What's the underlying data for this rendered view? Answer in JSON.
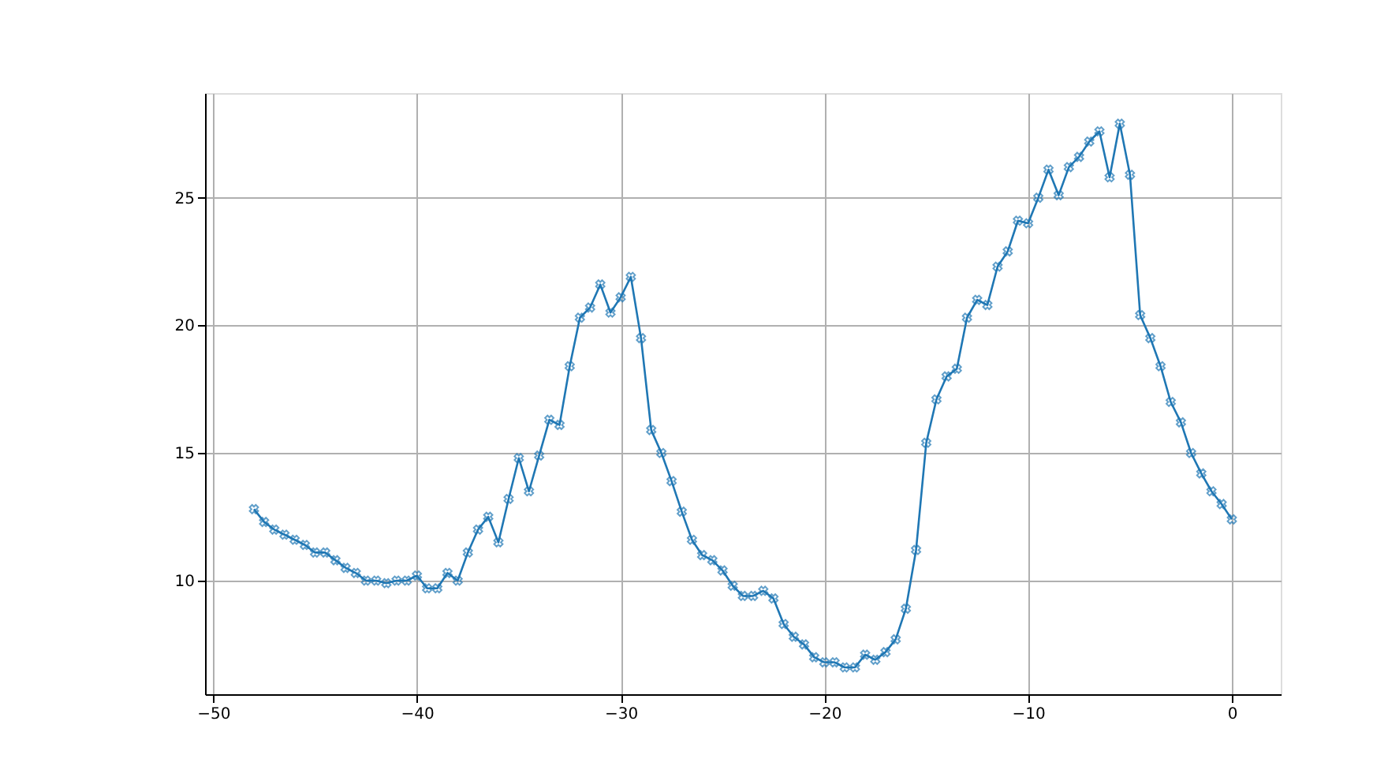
{
  "chart_data": {
    "type": "line",
    "marker": "cross",
    "grid": true,
    "x": [
      -48,
      -47.5,
      -47,
      -46.5,
      -46,
      -45.5,
      -45,
      -44.5,
      -44,
      -43.5,
      -43,
      -42.5,
      -42,
      -41.5,
      -41,
      -40.5,
      -40,
      -39.5,
      -39,
      -38.5,
      -38,
      -37.5,
      -37,
      -36.5,
      -36,
      -35.5,
      -35,
      -34.5,
      -34,
      -33.5,
      -33,
      -32.5,
      -32,
      -31.5,
      -31,
      -30.5,
      -30,
      -29.5,
      -29,
      -28.5,
      -28,
      -27.5,
      -27,
      -26.5,
      -26,
      -25.5,
      -25,
      -24.5,
      -24,
      -23.5,
      -23,
      -22.5,
      -22,
      -21.5,
      -21,
      -20.5,
      -20,
      -19.5,
      -19,
      -18.5,
      -18,
      -17.5,
      -17,
      -16.5,
      -16,
      -15.5,
      -15,
      -14.5,
      -14,
      -13.5,
      -13,
      -12.5,
      -12,
      -11.5,
      -11,
      -10.5,
      -10,
      -9.5,
      -9,
      -8.5,
      -8,
      -7.5,
      -7,
      -6.5,
      -6,
      -5.5,
      -5,
      -4.5,
      -4,
      -3.5,
      -3,
      -2.5,
      -2,
      -1.5,
      -1,
      -0.5,
      0
    ],
    "series": [
      {
        "color": "#1f77b4",
        "values": [
          12.8,
          12.3,
          12.0,
          11.8,
          11.6,
          11.4,
          11.1,
          11.1,
          10.8,
          10.5,
          10.3,
          10.0,
          10.0,
          9.9,
          10.0,
          10.0,
          10.2,
          9.7,
          9.7,
          10.3,
          10.0,
          11.1,
          12.0,
          12.5,
          11.5,
          13.2,
          14.8,
          13.5,
          14.9,
          16.3,
          16.1,
          18.4,
          20.3,
          20.7,
          21.6,
          20.5,
          21.1,
          21.9,
          19.5,
          15.9,
          15.0,
          13.9,
          12.7,
          11.6,
          11.0,
          10.8,
          10.4,
          9.8,
          9.4,
          9.4,
          9.6,
          9.3,
          8.3,
          7.8,
          7.5,
          7.0,
          6.8,
          6.8,
          6.6,
          6.6,
          7.1,
          6.9,
          7.2,
          7.7,
          8.9,
          11.2,
          15.4,
          17.1,
          18.0,
          18.3,
          20.3,
          21.0,
          20.8,
          22.3,
          22.9,
          24.1,
          24.0,
          25.0,
          26.1,
          25.1,
          26.2,
          26.6,
          27.2,
          27.6,
          25.8,
          27.9,
          25.9,
          20.4,
          19.5,
          18.4,
          17.0,
          16.2,
          15.0,
          14.2,
          13.5,
          13.0,
          12.4
        ]
      }
    ],
    "xlim": [
      -50.4,
      2.4
    ],
    "xticks": [
      -50,
      -40,
      -30,
      -20,
      -10,
      0
    ],
    "ylim": [
      5.55,
      29.1
    ],
    "yticks": [
      10,
      15,
      20,
      25
    ]
  }
}
